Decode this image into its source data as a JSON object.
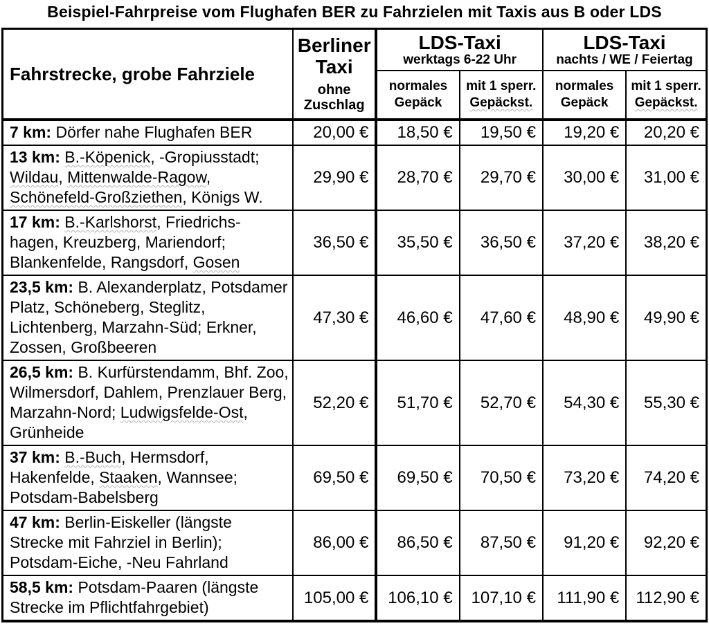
{
  "title": "Beispiel-Fahrpreise vom Flughafen BER zu Fahrzielen mit Taxis aus B oder LDS",
  "colors": {
    "text": "#000000",
    "border": "#000000",
    "spellcheck_underline": "#b3b3b3"
  },
  "table": {
    "route_header": "Fahrstrecke, grobe Fahrziele",
    "berliner": {
      "title": "Berliner Taxi",
      "subtitle": "ohne Zuschlag"
    },
    "groups": [
      {
        "title": "LDS-Taxi",
        "subtitle": "werktags 6-22 Uhr"
      },
      {
        "title": "LDS-Taxi",
        "subtitle": "nachts / WE / Feiertag"
      }
    ],
    "subheaders": [
      [
        {
          "t": "normales Gepäck"
        }
      ],
      [
        {
          "t": "mit 1 sperr. "
        },
        {
          "t": "Gepäckst.",
          "u": true
        }
      ]
    ],
    "rows": [
      {
        "km": "7 km:",
        "desc": [
          {
            "t": " Dörfer nahe Flughafen BER"
          }
        ],
        "prices": [
          "20,00 €",
          "18,50 €",
          "19,50 €",
          "19,20 €",
          "20,20 €"
        ]
      },
      {
        "km": "13 km:",
        "desc": [
          {
            "t": " "
          },
          {
            "t": "B.-Köpenick",
            "u": true
          },
          {
            "t": ", -Gropiusstadt; "
          },
          {
            "t": "Wildau",
            "u": true
          },
          {
            "t": ", "
          },
          {
            "t": "Mittenwalde-Ragow",
            "u": true
          },
          {
            "t": ", "
          },
          {
            "t": "Schönefeld-Großziethen",
            "u": true
          },
          {
            "t": ", Königs W."
          }
        ],
        "prices": [
          "29,90 €",
          "28,70 €",
          "29,70 €",
          "30,00 €",
          "31,00 €"
        ]
      },
      {
        "km": "17 km:",
        "desc": [
          {
            "t": " "
          },
          {
            "t": "B.-Karlshorst",
            "u": true
          },
          {
            "t": ", Friedrichs-hagen, Kreuzberg, Mariendorf; Blankenfelde, Rangsdorf, "
          },
          {
            "t": "Gosen",
            "u": true
          }
        ],
        "prices": [
          "36,50 €",
          "35,50 €",
          "36,50 €",
          "37,20 €",
          "38,20 €"
        ]
      },
      {
        "km": "23,5 km:",
        "desc": [
          {
            "t": " B. Alexanderplatz, Potsdamer Platz, Schöneberg, Steglitz, Lichtenberg, Marzahn-Süd; Erkner, Zossen, Großbeeren"
          }
        ],
        "prices": [
          "47,30 €",
          "46,60 €",
          "47,60 €",
          "48,90 €",
          "49,90 €"
        ]
      },
      {
        "km": "26,5 km:",
        "desc": [
          {
            "t": " B. Kurfürstendamm, Bhf. Zoo, Wilmersdorf, Dahlem, Prenzlauer Berg, Marzahn-Nord; "
          },
          {
            "t": "Ludwigsfelde-Ost",
            "u": true
          },
          {
            "t": ", Grünheide"
          }
        ],
        "prices": [
          "52,20 €",
          "51,70 €",
          "52,70 €",
          "54,30 €",
          "55,30 €"
        ]
      },
      {
        "km": "37 km:",
        "desc": [
          {
            "t": " "
          },
          {
            "t": "B.-Buch",
            "u": true
          },
          {
            "t": ", Hermsdorf, Hakenfelde, "
          },
          {
            "t": "Staaken",
            "u": true
          },
          {
            "t": ", Wannsee; Potsdam-Babelsberg"
          }
        ],
        "prices": [
          "69,50 €",
          "69,50 €",
          "70,50 €",
          "73,20 €",
          "74,20 €"
        ]
      },
      {
        "km": "47 km:",
        "desc": [
          {
            "t": " Berlin-Eiskeller (längste Strecke mit Fahrziel in Berlin); Potsdam-Eiche, -Neu Fahrland"
          }
        ],
        "prices": [
          "86,00 €",
          "86,50 €",
          "87,50 €",
          "91,20 €",
          "92,20 €"
        ]
      },
      {
        "km": "58,5 km:",
        "desc": [
          {
            "t": " Potsdam-Paaren (längste Strecke im Pflichtfahrgebiet)"
          }
        ],
        "prices": [
          "105,00 €",
          "106,10 €",
          "107,10 €",
          "111,90 €",
          "112,90 €"
        ]
      }
    ]
  }
}
